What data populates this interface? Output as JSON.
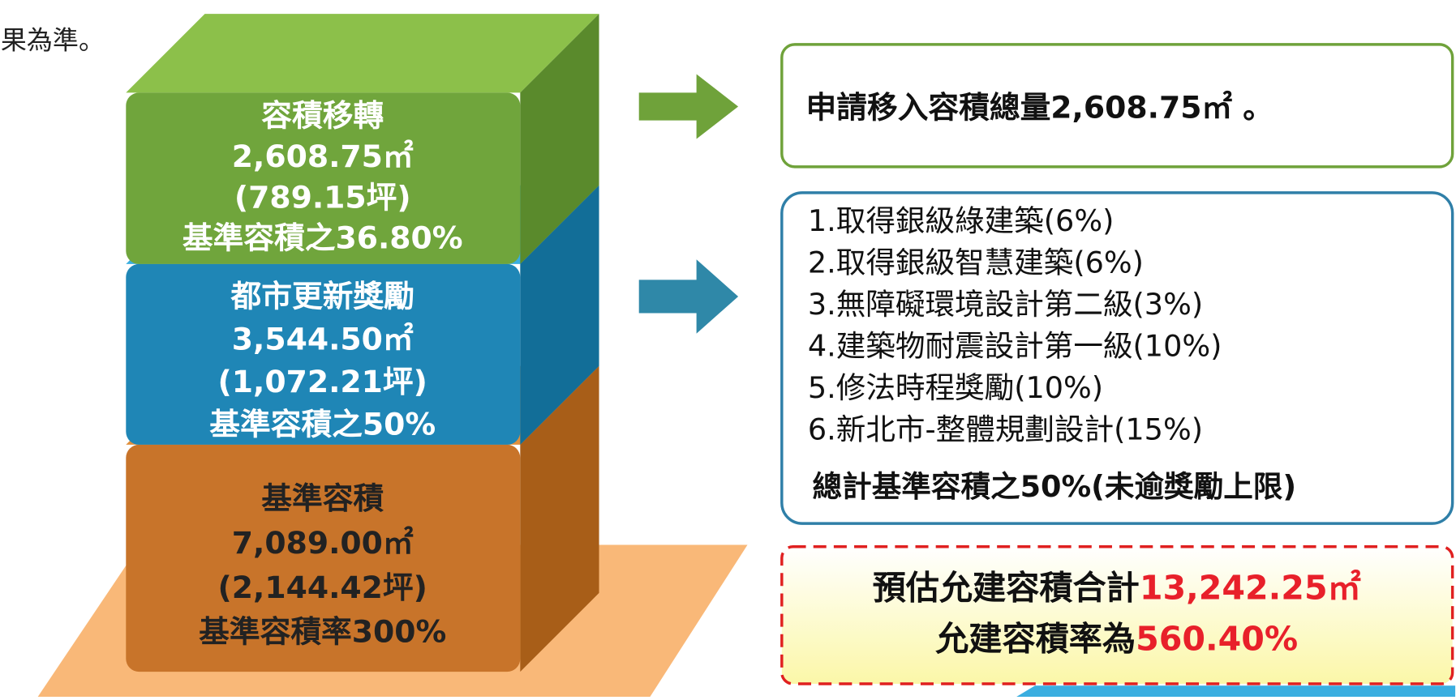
{
  "header": {
    "text": "果為準。"
  },
  "blocks": [
    {
      "lines": [
        "容積移轉",
        "2,608.75㎡",
        "(789.15坪)",
        "基準容積之36.80%"
      ]
    },
    {
      "lines": [
        "都市更新獎勵",
        "3,544.50㎡",
        "(1,072.21坪)",
        "基準容積之50%"
      ]
    },
    {
      "lines": [
        "基準容積",
        "7,089.00㎡",
        "(2,144.42坪)",
        "基準容積率300%"
      ]
    }
  ],
  "transfer_box": {
    "text": "申請移入容積總量2,608.75㎡ 。"
  },
  "bonus_box": {
    "items": [
      "1.取得銀級綠建築(6%)",
      "2.取得銀級智慧建築(6%)",
      "3.無障礙環境設計第二級(3%)",
      "4.建築物耐震設計第一級(10%)",
      "5.修法時程獎勵(10%)",
      "6.新北市-整體規劃設計(15%)"
    ],
    "total": "總計基準容積之50%(未逾獎勵上限)"
  },
  "summary_box": {
    "line1": {
      "label": "預估允建容積合計",
      "value": "13,242.25㎡"
    },
    "line2": {
      "label": "允建容積率為",
      "value": "560.40%"
    }
  }
}
